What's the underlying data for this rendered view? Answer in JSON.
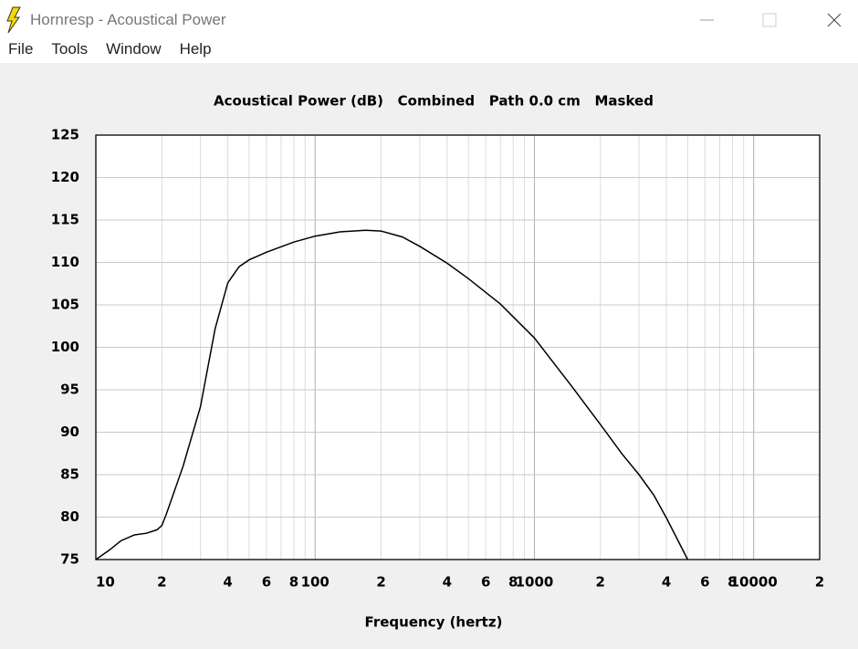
{
  "window": {
    "title": "Hornresp - Acoustical Power"
  },
  "menu": [
    "File",
    "Tools",
    "Window",
    "Help"
  ],
  "chart_data": {
    "type": "line",
    "title": "Acoustical Power (dB)   Combined   Path 0.0 cm   Masked",
    "x_label": "Frequency (hertz)",
    "x_scale": "log",
    "xlim": [
      10,
      20000
    ],
    "ylim": [
      75,
      125
    ],
    "xticks": [
      {
        "value": 10,
        "label": "10"
      },
      {
        "value": 20,
        "label": "2"
      },
      {
        "value": 40,
        "label": "4"
      },
      {
        "value": 60,
        "label": "6"
      },
      {
        "value": 80,
        "label": "8"
      },
      {
        "value": 100,
        "label": "100"
      },
      {
        "value": 200,
        "label": "2"
      },
      {
        "value": 400,
        "label": "4"
      },
      {
        "value": 600,
        "label": "6"
      },
      {
        "value": 800,
        "label": "8"
      },
      {
        "value": 1000,
        "label": "1000"
      },
      {
        "value": 2000,
        "label": "2"
      },
      {
        "value": 4000,
        "label": "4"
      },
      {
        "value": 6000,
        "label": "6"
      },
      {
        "value": 8000,
        "label": "8"
      },
      {
        "value": 10000,
        "label": "10000"
      },
      {
        "value": 20000,
        "label": "2"
      }
    ],
    "x_minor_ticks": [
      30,
      50,
      70,
      90,
      300,
      500,
      700,
      900,
      3000,
      5000,
      7000,
      9000
    ],
    "yticks": [
      75,
      80,
      85,
      90,
      95,
      100,
      105,
      110,
      115,
      120,
      125
    ],
    "grid": true,
    "series": [
      {
        "color": "#000000",
        "x": [
          10,
          11.5,
          13,
          15,
          17,
          19,
          20,
          21,
          25,
          30,
          35,
          40,
          45,
          50,
          60,
          80,
          100,
          130,
          170,
          200,
          250,
          300,
          400,
          500,
          700,
          1000,
          1500,
          2000,
          2500,
          3000,
          3500,
          4000,
          5000
        ],
        "values": [
          75,
          76.1,
          77.2,
          77.9,
          78.1,
          78.5,
          79,
          80.4,
          86,
          93,
          102.2,
          107.6,
          109.5,
          110.3,
          111.2,
          112.4,
          113.1,
          113.6,
          113.8,
          113.7,
          113,
          111.9,
          109.9,
          108.1,
          105.1,
          101.1,
          95.2,
          90.9,
          87.5,
          85,
          82.6,
          79.9,
          75
        ]
      }
    ]
  }
}
